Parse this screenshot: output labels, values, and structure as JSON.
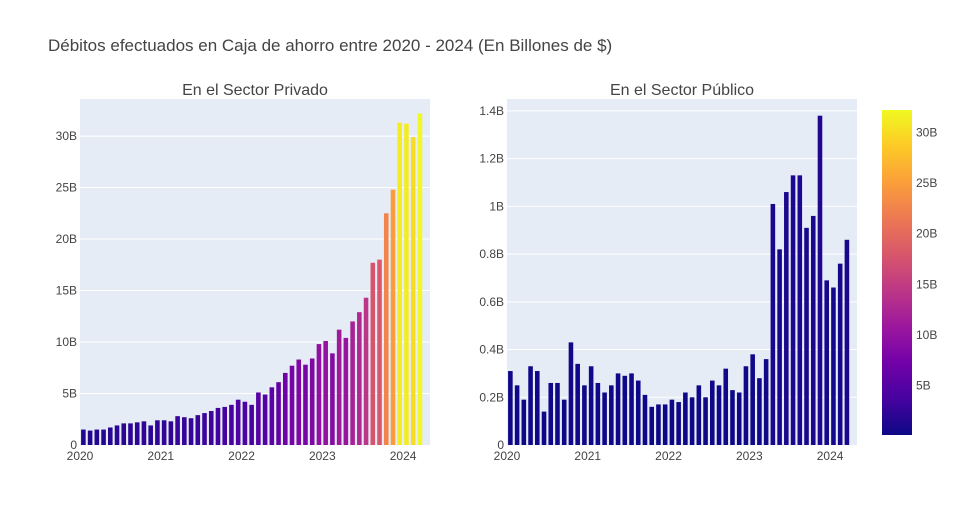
{
  "title": "Débitos efectuados en Caja de ahorro entre 2020 - 2024 (En Billones de $)",
  "chart_data": [
    {
      "type": "bar",
      "subtitle": "En el Sector Privado",
      "x_start": "2020-01",
      "x_ticks": [
        "2020",
        "2021",
        "2022",
        "2023",
        "2024"
      ],
      "y_ticks": [
        "0",
        "5B",
        "10B",
        "15B",
        "20B",
        "25B",
        "30B"
      ],
      "ylim": [
        0,
        33.6
      ],
      "grid": true,
      "values": [
        1.5,
        1.4,
        1.5,
        1.5,
        1.7,
        1.9,
        2.1,
        2.1,
        2.2,
        2.3,
        1.9,
        2.4,
        2.4,
        2.3,
        2.8,
        2.7,
        2.6,
        2.9,
        3.1,
        3.3,
        3.6,
        3.7,
        3.9,
        4.4,
        4.2,
        3.9,
        5.1,
        4.9,
        5.6,
        6.1,
        7.0,
        7.7,
        8.3,
        7.8,
        8.4,
        9.8,
        10.1,
        8.9,
        11.2,
        10.4,
        12.0,
        12.9,
        14.3,
        17.7,
        18.0,
        22.5,
        24.8,
        31.3,
        31.2,
        29.9,
        32.2
      ]
    },
    {
      "type": "bar",
      "subtitle": "En el Sector Público",
      "x_start": "2020-01",
      "x_ticks": [
        "2020",
        "2021",
        "2022",
        "2023",
        "2024"
      ],
      "y_ticks": [
        "0",
        "0.2B",
        "0.4B",
        "0.6B",
        "0.8B",
        "1B",
        "1.2B",
        "1.4B"
      ],
      "ylim": [
        0,
        1.45
      ],
      "grid": true,
      "values": [
        0.31,
        0.25,
        0.19,
        0.33,
        0.31,
        0.14,
        0.26,
        0.26,
        0.19,
        0.43,
        0.34,
        0.25,
        0.33,
        0.26,
        0.22,
        0.25,
        0.3,
        0.29,
        0.3,
        0.27,
        0.21,
        0.16,
        0.17,
        0.17,
        0.19,
        0.18,
        0.22,
        0.2,
        0.25,
        0.2,
        0.27,
        0.25,
        0.32,
        0.23,
        0.22,
        0.33,
        0.38,
        0.28,
        0.36,
        1.01,
        0.82,
        1.06,
        1.13,
        1.13,
        0.91,
        0.96,
        1.38,
        0.69,
        0.66,
        0.76,
        0.86
      ]
    }
  ],
  "colorbar": {
    "ticks": [
      "5B",
      "10B",
      "15B",
      "20B",
      "25B",
      "30B"
    ],
    "tick_values": [
      5,
      10,
      15,
      20,
      25,
      30
    ],
    "range": [
      0.14,
      32.2
    ],
    "colorscale": [
      "#0d0887",
      "#46039f",
      "#7201a8",
      "#9c179e",
      "#bd3786",
      "#d8576b",
      "#ed7953",
      "#fb9f3a",
      "#fdca26",
      "#f0f921"
    ]
  },
  "colors": {
    "plot_bg": "#e5ecf6",
    "grid": "#ffffff",
    "text": "#444444",
    "title": "#2a3f5f"
  }
}
